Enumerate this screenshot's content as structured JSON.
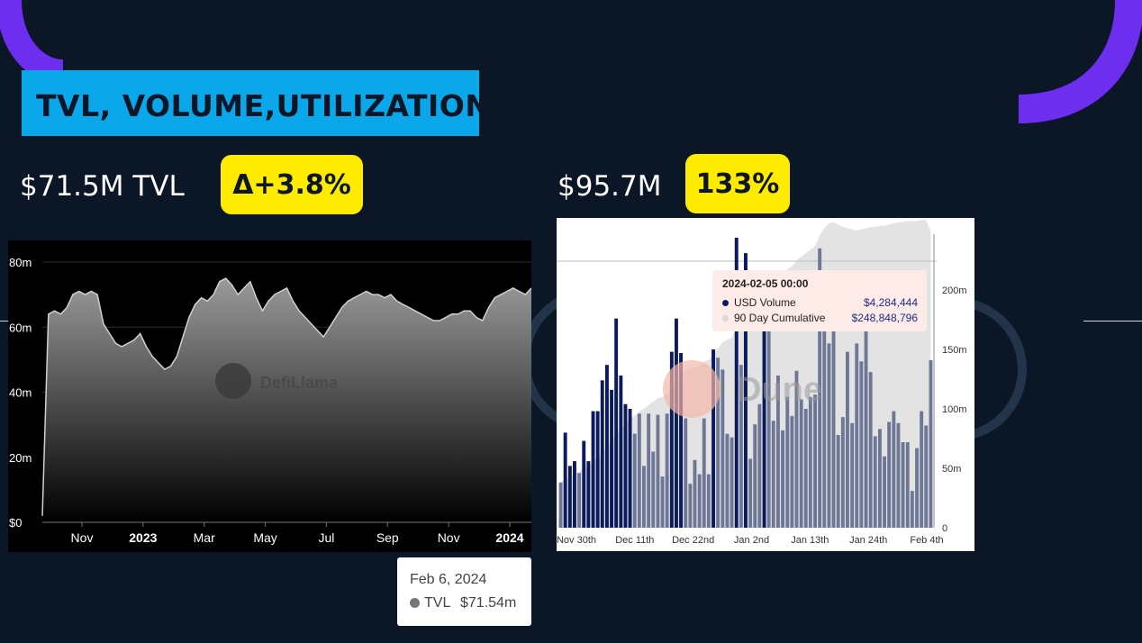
{
  "title": "TVL, VOLUME,UTILIZATION",
  "tvl": {
    "value_label": "$71.5M TVL",
    "delta_label": "Δ+3.8%"
  },
  "volume": {
    "value_label": "$95.7M",
    "utilization_label": "133%"
  },
  "colors": {
    "background": "#0b1627",
    "title_box": "#0aa7ea",
    "badge": "#ffeb00",
    "arc": "#6d2ef0",
    "dune_bar": "#6e7896",
    "dune_highlight": "#0a1a5c"
  },
  "chart_data": [
    {
      "type": "area",
      "source_watermark": "DefiLlama",
      "y_ticks": [
        "$0",
        "20m",
        "40m",
        "60m",
        "80m"
      ],
      "ylim": [
        0,
        80
      ],
      "x_ticks": [
        "Nov",
        "2023",
        "Mar",
        "May",
        "Jul",
        "Sep",
        "Nov",
        "2024"
      ],
      "bold_x_ticks": [
        "2023",
        "2024"
      ],
      "series": [
        {
          "name": "TVL",
          "unit": "m",
          "values": [
            2,
            64,
            65,
            64,
            66,
            70,
            71,
            70,
            71,
            70,
            61,
            58,
            55,
            54,
            55,
            56,
            58,
            54,
            51,
            49,
            47,
            48,
            51,
            57,
            63,
            67,
            69,
            68,
            70,
            74,
            75,
            73,
            70,
            72,
            74,
            69,
            65,
            68,
            70,
            71,
            72,
            68,
            65,
            63,
            61,
            59,
            57,
            60,
            63,
            66,
            68,
            69,
            70,
            71,
            70,
            70,
            69,
            70,
            68,
            67,
            66,
            65,
            64,
            63,
            62,
            62,
            63,
            64,
            64,
            65,
            65,
            63,
            62,
            66,
            69,
            70,
            71,
            72,
            71,
            70,
            72
          ]
        }
      ],
      "tooltip": {
        "date": "Feb 6, 2024",
        "series": "TVL",
        "value": "$71.54m"
      }
    },
    {
      "type": "bar",
      "source_watermark": "Dune",
      "x_ticks": [
        "Nov 30th",
        "Dec 11th",
        "Dec 22nd",
        "Jan 2nd",
        "Jan 13th",
        "Jan 24th",
        "Feb 4th"
      ],
      "y_ticks": [
        "0",
        "50m",
        "100m",
        "150m",
        "200m"
      ],
      "ylim": [
        0,
        250
      ],
      "series": [
        {
          "name": "USD Volume",
          "unit": "m",
          "values": [
            38,
            80,
            52,
            56,
            46,
            73,
            56,
            98,
            98,
            124,
            137,
            116,
            176,
            128,
            104,
            100,
            79,
            96,
            52,
            96,
            64,
            95,
            43,
            96,
            148,
            176,
            147,
            92,
            37,
            57,
            45,
            92,
            45,
            150,
            143,
            133,
            79,
            76,
            244,
            137,
            231,
            58,
            87,
            104,
            216,
            189,
            90,
            128,
            82,
            110,
            94,
            132,
            108,
            100,
            110,
            112,
            235,
            180,
            155,
            190,
            78,
            93,
            148,
            88,
            155,
            140,
            186,
            131,
            77,
            83,
            60,
            89,
            98,
            88,
            72,
            72,
            31,
            67,
            98,
            86,
            141
          ]
        },
        {
          "name": "90 Day Cumulative",
          "unit": "m",
          "values": [
            39,
            40,
            43,
            45,
            47,
            50,
            52,
            56,
            59,
            63,
            68,
            73,
            79,
            83,
            87,
            91,
            94,
            98,
            100,
            103,
            106,
            109,
            110,
            113,
            118,
            124,
            129,
            132,
            133,
            135,
            136,
            140,
            141,
            146,
            151,
            156,
            158,
            160,
            169,
            173,
            181,
            183,
            186,
            190,
            197,
            203,
            206,
            210,
            213,
            217,
            220,
            225,
            228,
            231,
            234,
            237,
            246,
            252,
            256,
            257,
            255,
            253,
            252,
            251,
            250,
            251,
            252,
            253,
            253,
            254,
            254,
            255,
            256,
            257,
            257,
            258,
            258,
            258,
            259,
            259,
            249
          ]
        }
      ],
      "tooltip": {
        "date": "2024-02-05 00:00",
        "rows": [
          {
            "label": "USD Volume",
            "value": "$4,284,444"
          },
          {
            "label": "90 Day Cumulative",
            "value": "$248,848,796"
          }
        ]
      }
    }
  ]
}
